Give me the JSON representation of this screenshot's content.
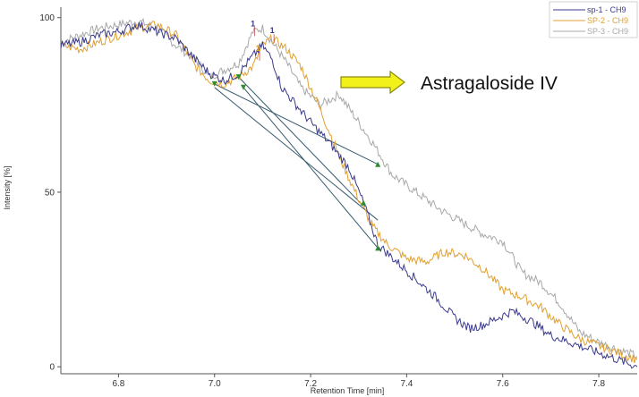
{
  "chart_data": {
    "type": "line",
    "xlabel": "Retention Time [min]",
    "ylabel": "Intensity [%]",
    "xlim": [
      6.68,
      7.88
    ],
    "ylim": [
      -2,
      103
    ],
    "x_ticks": [
      "6.8",
      "7.0",
      "7.2",
      "7.4",
      "7.6",
      "7.8"
    ],
    "y_ticks": [
      "0",
      "50",
      "100"
    ],
    "legend_position": "top-right",
    "legend": [
      "sp-1 - CH9",
      "SP-2 - CH9",
      "SP-3 - CH9"
    ],
    "annotation": "Astragaloside IV",
    "peak_labels": [
      "1",
      "1",
      "1"
    ],
    "series": [
      {
        "name": "sp-1 - CH9",
        "color": "#3a3a8c",
        "points": [
          [
            6.68,
            92
          ],
          [
            6.72,
            93
          ],
          [
            6.76,
            95
          ],
          [
            6.8,
            96
          ],
          [
            6.84,
            98
          ],
          [
            6.88,
            96
          ],
          [
            6.92,
            94
          ],
          [
            6.96,
            88
          ],
          [
            6.99,
            84
          ],
          [
            7.02,
            82
          ],
          [
            7.05,
            84
          ],
          [
            7.08,
            89
          ],
          [
            7.1,
            92
          ],
          [
            7.12,
            88
          ],
          [
            7.14,
            80
          ],
          [
            7.17,
            75
          ],
          [
            7.2,
            70
          ],
          [
            7.24,
            64
          ],
          [
            7.28,
            57
          ],
          [
            7.31,
            47
          ],
          [
            7.34,
            35
          ],
          [
            7.38,
            30
          ],
          [
            7.42,
            25
          ],
          [
            7.46,
            20
          ],
          [
            7.5,
            14
          ],
          [
            7.53,
            11
          ],
          [
            7.56,
            12
          ],
          [
            7.59,
            14
          ],
          [
            7.62,
            16
          ],
          [
            7.66,
            13
          ],
          [
            7.7,
            9
          ],
          [
            7.74,
            7
          ],
          [
            7.78,
            5
          ],
          [
            7.82,
            3
          ],
          [
            7.86,
            1
          ],
          [
            7.88,
            0
          ]
        ]
      },
      {
        "name": "SP-2 - CH9",
        "color": "#e0a030",
        "points": [
          [
            6.68,
            92
          ],
          [
            6.72,
            91
          ],
          [
            6.76,
            93
          ],
          [
            6.8,
            95
          ],
          [
            6.84,
            97
          ],
          [
            6.88,
            98
          ],
          [
            6.92,
            95
          ],
          [
            6.96,
            86
          ],
          [
            6.99,
            82
          ],
          [
            7.02,
            81
          ],
          [
            7.05,
            83
          ],
          [
            7.08,
            86
          ],
          [
            7.1,
            92
          ],
          [
            7.12,
            94
          ],
          [
            7.15,
            91
          ],
          [
            7.18,
            86
          ],
          [
            7.21,
            77
          ],
          [
            7.24,
            67
          ],
          [
            7.27,
            57
          ],
          [
            7.3,
            48
          ],
          [
            7.33,
            40
          ],
          [
            7.36,
            35
          ],
          [
            7.4,
            31
          ],
          [
            7.44,
            30
          ],
          [
            7.48,
            33
          ],
          [
            7.52,
            32
          ],
          [
            7.56,
            28
          ],
          [
            7.6,
            22
          ],
          [
            7.64,
            20
          ],
          [
            7.68,
            17
          ],
          [
            7.72,
            12
          ],
          [
            7.76,
            8
          ],
          [
            7.8,
            6
          ],
          [
            7.84,
            4
          ],
          [
            7.88,
            2
          ]
        ]
      },
      {
        "name": "SP-3 - CH9",
        "color": "#a8a8a8",
        "points": [
          [
            6.68,
            93
          ],
          [
            6.72,
            95
          ],
          [
            6.76,
            97
          ],
          [
            6.8,
            98
          ],
          [
            6.84,
            99
          ],
          [
            6.88,
            97
          ],
          [
            6.92,
            92
          ],
          [
            6.96,
            88
          ],
          [
            6.99,
            83
          ],
          [
            7.02,
            85
          ],
          [
            7.05,
            87
          ],
          [
            7.08,
            96
          ],
          [
            7.1,
            97
          ],
          [
            7.12,
            93
          ],
          [
            7.15,
            87
          ],
          [
            7.18,
            80
          ],
          [
            7.22,
            75
          ],
          [
            7.26,
            78
          ],
          [
            7.29,
            72
          ],
          [
            7.33,
            64
          ],
          [
            7.37,
            55
          ],
          [
            7.42,
            50
          ],
          [
            7.47,
            45
          ],
          [
            7.52,
            41
          ],
          [
            7.56,
            38
          ],
          [
            7.6,
            36
          ],
          [
            7.64,
            27
          ],
          [
            7.68,
            24
          ],
          [
            7.72,
            18
          ],
          [
            7.76,
            10
          ],
          [
            7.8,
            7
          ],
          [
            7.84,
            5
          ],
          [
            7.88,
            3
          ]
        ]
      }
    ],
    "baseline_lines": [
      {
        "color": "#355a6e",
        "from": [
          7.0,
          81
        ],
        "to": [
          7.34,
          58
        ]
      },
      {
        "color": "#355a6e",
        "from": [
          7.0,
          80
        ],
        "to": [
          7.34,
          42
        ]
      },
      {
        "color": "#355a6e",
        "from": [
          7.05,
          83
        ],
        "to": [
          7.31,
          46
        ]
      },
      {
        "color": "#355a6e",
        "from": [
          7.06,
          80
        ],
        "to": [
          7.34,
          34
        ]
      }
    ],
    "markers": {
      "color": "#2e8b2e",
      "start": [
        [
          7.0,
          81
        ],
        [
          7.05,
          83
        ],
        [
          7.06,
          80
        ]
      ],
      "end": [
        [
          7.34,
          58
        ],
        [
          7.31,
          47
        ],
        [
          7.34,
          34
        ]
      ]
    },
    "peak_label_positions": [
      [
        7.08,
        97
      ],
      [
        7.09,
        90
      ],
      [
        7.12,
        95
      ]
    ],
    "peak_label_colors": [
      "#3a3a8c",
      "#e0a030",
      "#3a3a8c"
    ]
  }
}
